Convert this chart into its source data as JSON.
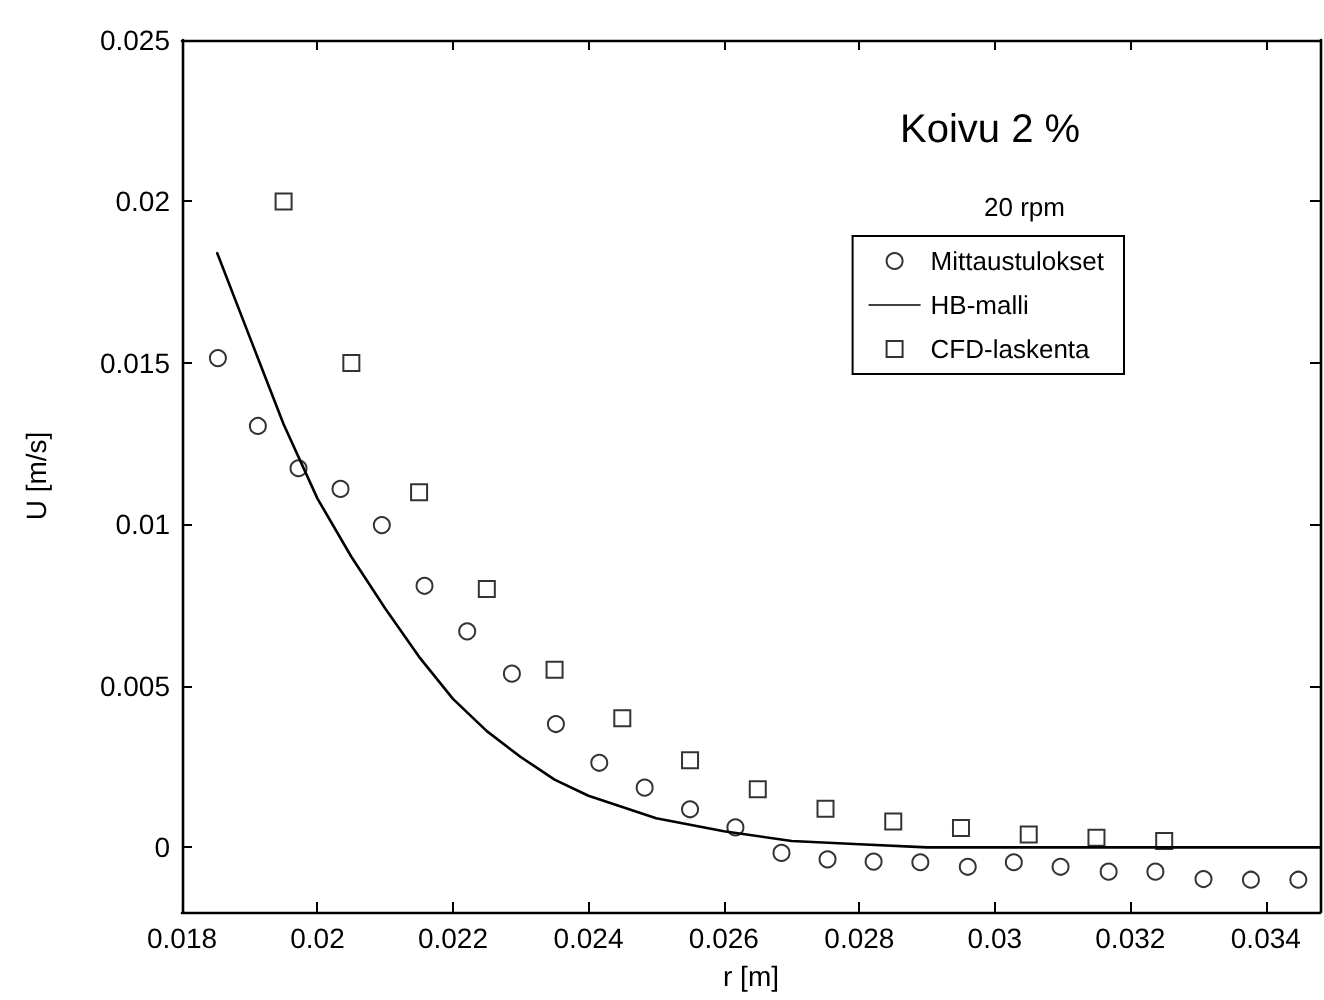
{
  "chart_data": {
    "type": "scatter",
    "title": "Koivu 2 %",
    "subtitle": "20 rpm",
    "xlabel": "r [m]",
    "ylabel": "U [m/s]",
    "series": [
      {
        "name": "Mittaustulokset",
        "marker": "circle",
        "color": "#000000",
        "x": [
          0.01853,
          0.01912,
          0.01972,
          0.02034,
          0.02095,
          0.02158,
          0.02221,
          0.02287,
          0.02352,
          0.02416,
          0.02483,
          0.0255,
          0.02617,
          0.02685,
          0.02753,
          0.02821,
          0.0289,
          0.0296,
          0.03028,
          0.03097,
          0.03168,
          0.03237,
          0.03308,
          0.03378,
          0.03448
        ],
        "values": [
          0.01515,
          0.01305,
          0.01174,
          0.0111,
          0.00998,
          0.0081,
          0.00669,
          0.00538,
          0.00382,
          0.00262,
          0.00185,
          0.00118,
          0.00062,
          -0.00017,
          -0.00037,
          -0.00044,
          -0.00046,
          -0.0006,
          -0.00046,
          -0.0006,
          -0.00075,
          -0.00075,
          -0.00098,
          -0.001,
          -0.001
        ]
      },
      {
        "name": "HB-malli",
        "type": "line",
        "marker": "none",
        "line_style": "solid",
        "color": "#000000",
        "x": [
          0.01852,
          0.019,
          0.0195,
          0.02,
          0.0205,
          0.021,
          0.0215,
          0.022,
          0.0225,
          0.023,
          0.0235,
          0.024,
          0.025,
          0.026,
          0.027,
          0.028,
          0.029,
          0.0348
        ],
        "values": [
          0.0184,
          0.0158,
          0.0131,
          0.0108,
          0.009,
          0.0074,
          0.0059,
          0.0046,
          0.0036,
          0.0028,
          0.0021,
          0.0016,
          0.0009,
          0.0005,
          0.0002,
          0.0001,
          0,
          0
        ]
      },
      {
        "name": "CFD-laskenta",
        "marker": "square",
        "color": "#000000",
        "x": [
          0.0195,
          0.0205,
          0.0215,
          0.0225,
          0.0235,
          0.0245,
          0.0255,
          0.0265,
          0.0275,
          0.0285,
          0.0295,
          0.0305,
          0.0315,
          0.0325
        ],
        "values": [
          0.02,
          0.015,
          0.011,
          0.008,
          0.0055,
          0.004,
          0.0027,
          0.0018,
          0.0012,
          0.0008,
          0.0006,
          0.0004,
          0.0003,
          0.0002
        ]
      }
    ],
    "xlim": [
      0.018,
      0.0348
    ],
    "xticks": [
      0.018,
      0.02,
      0.022,
      0.024,
      0.026,
      0.028,
      0.03,
      0.032,
      0.034
    ],
    "ylim": [
      -0.002,
      0.025
    ],
    "yticks": [
      0,
      0.005,
      0.01,
      0.015,
      0.02,
      0.025
    ],
    "grid": false,
    "legend": "top right"
  }
}
